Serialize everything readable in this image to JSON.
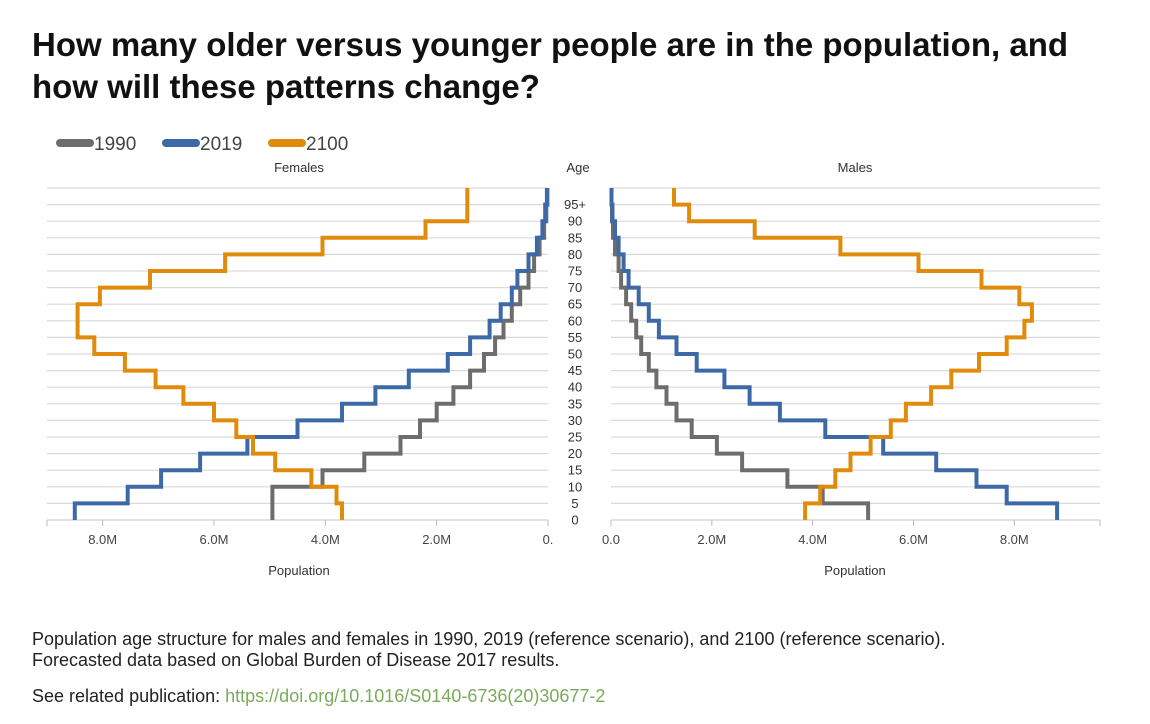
{
  "title": "How many older versus younger people are in the population, and how will these patterns change?",
  "caption": {
    "line1": "Population age structure for males and females in 1990, 2019 (reference scenario), and 2100 (reference scenario).",
    "line2": "Forecasted data based on Global Burden of Disease 2017 results."
  },
  "related": {
    "label": "See related publication:",
    "link": "https://doi.org/10.1016/S0140-6736(20)30677-2"
  },
  "colors": {
    "1990": "#6d6d6d",
    "2019": "#3d69a6",
    "2100": "#e08b0b"
  },
  "chart_data": {
    "type": "line",
    "subtype": "population-pyramid-step",
    "legend": [
      {
        "name": "1990",
        "color": "#6d6d6d"
      },
      {
        "name": "2019",
        "color": "#3d69a6"
      },
      {
        "name": "2100",
        "color": "#e08b0b"
      }
    ],
    "legend_position": "top-left",
    "center_label": "Age",
    "age_groups": [
      "0",
      "5",
      "10",
      "15",
      "20",
      "25",
      "30",
      "35",
      "40",
      "45",
      "50",
      "55",
      "60",
      "65",
      "70",
      "75",
      "80",
      "85",
      "90",
      "95+"
    ],
    "grid": true,
    "panels": [
      {
        "title": "Females",
        "xlabel": "Population",
        "xlim": [
          0,
          9000000
        ],
        "reversed": true,
        "ticks": [
          8000000,
          6000000,
          4000000,
          2000000,
          0
        ],
        "tick_labels": [
          "8.0M",
          "6.0M",
          "4.0M",
          "2.0M",
          "0."
        ],
        "series": [
          {
            "name": "1990",
            "values": [
              4950000,
              4950000,
              4050000,
              3300000,
              2650000,
              2300000,
              2000000,
              1700000,
              1400000,
              1150000,
              950000,
              800000,
              650000,
              500000,
              350000,
              250000,
              150000,
              70000,
              30000,
              10000
            ]
          },
          {
            "name": "2019",
            "values": [
              8500000,
              7550000,
              6950000,
              6250000,
              5400000,
              4500000,
              3700000,
              3100000,
              2500000,
              1800000,
              1400000,
              1050000,
              850000,
              650000,
              550000,
              350000,
              200000,
              100000,
              50000,
              20000
            ]
          },
          {
            "name": "2100",
            "values": [
              3700000,
              3800000,
              4250000,
              4900000,
              5300000,
              5600000,
              6000000,
              6550000,
              7050000,
              7600000,
              8150000,
              8450000,
              8450000,
              8050000,
              7150000,
              5800000,
              4050000,
              2200000,
              1450000,
              1450000
            ]
          }
        ]
      },
      {
        "title": "Males",
        "xlabel": "Population",
        "xlim": [
          0,
          9700000
        ],
        "reversed": false,
        "ticks": [
          0,
          2000000,
          4000000,
          6000000,
          8000000
        ],
        "tick_labels": [
          "0.0",
          "2.0M",
          "4.0M",
          "6.0M",
          "8.0M"
        ],
        "series": [
          {
            "name": "1990",
            "values": [
              5100000,
              4200000,
              3500000,
              2600000,
              2100000,
              1600000,
              1300000,
              1100000,
              900000,
              750000,
              600000,
              500000,
              400000,
              300000,
              200000,
              150000,
              80000,
              40000,
              20000,
              10000
            ]
          },
          {
            "name": "2019",
            "values": [
              8850000,
              7850000,
              7250000,
              6450000,
              5400000,
              4250000,
              3350000,
              2750000,
              2250000,
              1700000,
              1300000,
              950000,
              750000,
              550000,
              350000,
              250000,
              150000,
              80000,
              30000,
              10000
            ]
          },
          {
            "name": "2100",
            "values": [
              3850000,
              4150000,
              4450000,
              4750000,
              5150000,
              5550000,
              5850000,
              6350000,
              6750000,
              7300000,
              7850000,
              8200000,
              8350000,
              8100000,
              7350000,
              6100000,
              4550000,
              2850000,
              1550000,
              1250000
            ]
          }
        ]
      }
    ]
  }
}
